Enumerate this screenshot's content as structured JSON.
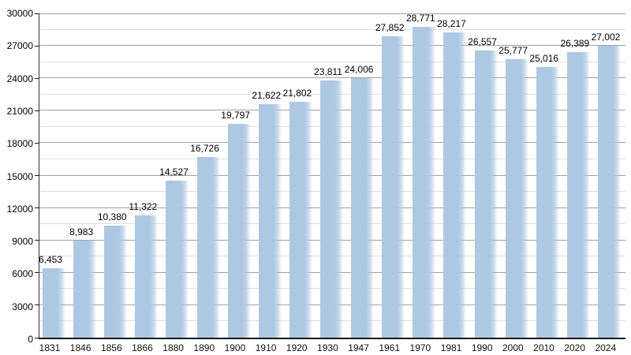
{
  "chart_data": {
    "type": "bar",
    "title": "",
    "xlabel": "",
    "ylabel": "",
    "categories": [
      "1831",
      "1846",
      "1856",
      "1866",
      "1880",
      "1890",
      "1900",
      "1910",
      "1920",
      "1930",
      "1947",
      "1961",
      "1970",
      "1981",
      "1990",
      "2000",
      "2010",
      "2020",
      "2024"
    ],
    "values": [
      6453,
      8983,
      10380,
      11322,
      14527,
      16726,
      19797,
      21622,
      21802,
      23811,
      24006,
      27852,
      28771,
      28217,
      26557,
      25777,
      25016,
      26389,
      27002
    ],
    "value_labels": [
      "6,453",
      "8,983",
      "10,380",
      "11,322",
      "14,527",
      "16,726",
      "19,797",
      "21,622",
      "21,802",
      "23,811",
      "24,006",
      "27,852",
      "28,771",
      "28,217",
      "26,557",
      "25,777",
      "25,016",
      "26,389",
      "27,002"
    ],
    "ylim": [
      0,
      30000
    ],
    "y_major_step": 3000,
    "y_minor_step": 1500,
    "y_tick_labels": [
      "0",
      "3000",
      "6000",
      "9000",
      "12000",
      "15000",
      "18000",
      "21000",
      "24000",
      "27000",
      "30000"
    ],
    "grid": true,
    "legend": "none",
    "colors": {
      "bar": "#aec8e3",
      "grid_major": "#a0a0a0",
      "grid_minor": "#dedede",
      "axis": "#1a1a1a",
      "text": "#000000",
      "background": "#ffffff"
    }
  }
}
